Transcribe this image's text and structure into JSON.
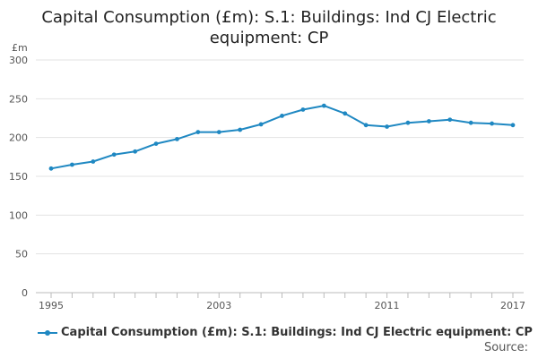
{
  "chart_data": {
    "type": "line",
    "title": "Capital Consumption (£m): S.1: Buildings: Ind CJ Electric equipment: CP",
    "ylabel": "£m",
    "xlabel": "",
    "ylim": [
      0,
      300
    ],
    "yticks": [
      0,
      50,
      100,
      150,
      200,
      250,
      300
    ],
    "xlim": [
      1995,
      2017
    ],
    "xtick_labels": [
      "1995",
      "2003",
      "2011",
      "2017"
    ],
    "grid": true,
    "legend_position": "bottom-left",
    "series": [
      {
        "name": "Capital Consumption (£m): S.1: Buildings: Ind CJ Electric equipment: CP",
        "color": "#1f88c2",
        "x": [
          1995,
          1996,
          1997,
          1998,
          1999,
          2000,
          2001,
          2002,
          2003,
          2004,
          2005,
          2006,
          2007,
          2008,
          2009,
          2010,
          2011,
          2012,
          2013,
          2014,
          2015,
          2016,
          2017
        ],
        "values": [
          160,
          165,
          169,
          178,
          182,
          192,
          198,
          207,
          207,
          210,
          217,
          228,
          236,
          241,
          231,
          216,
          214,
          219,
          221,
          223,
          219,
          218,
          216
        ]
      }
    ]
  },
  "source_label": "Source:"
}
